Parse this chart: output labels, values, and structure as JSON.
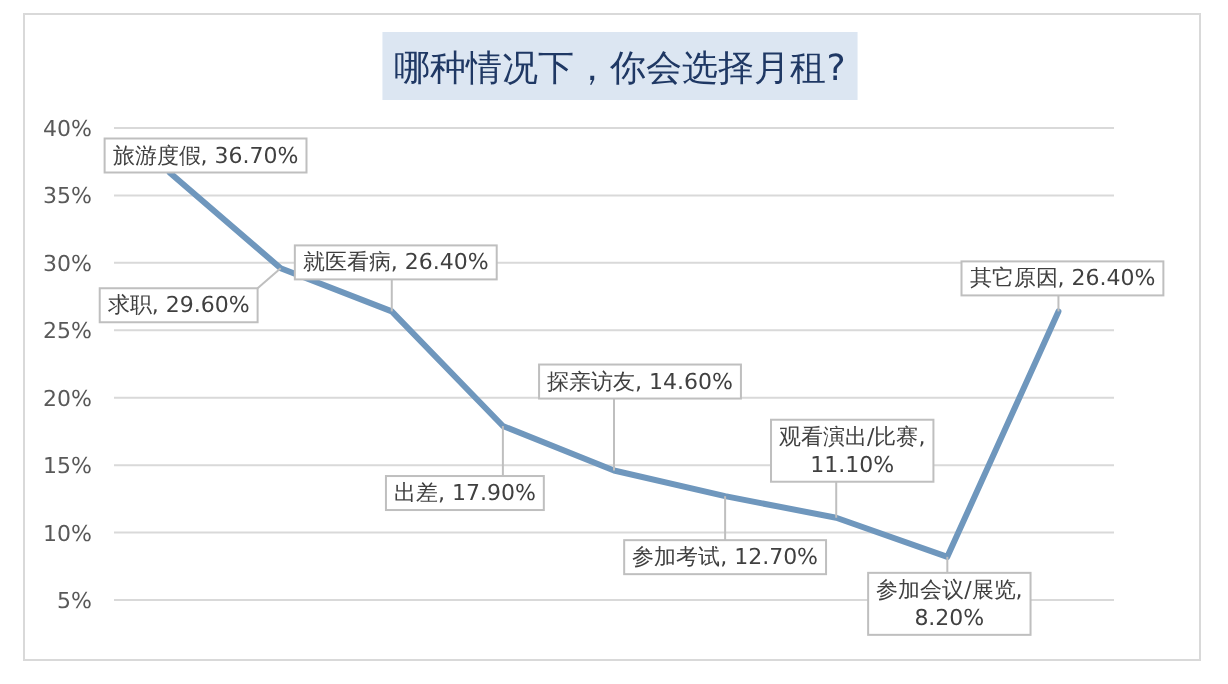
{
  "chart_data": {
    "type": "line",
    "title": "哪种情况下，你会选择月租?",
    "categories": [
      null,
      null,
      null,
      null,
      null,
      null,
      null,
      null,
      null
    ],
    "values": [
      36.7,
      29.6,
      26.4,
      17.9,
      14.6,
      12.7,
      11.1,
      8.2,
      26.4
    ],
    "value_labels": [
      "旅游度假, 36.70%",
      "求职, 29.60%",
      "就医看病, 26.40%",
      "出差, 17.90%",
      "探亲访友, 14.60%",
      "参加考试, 12.70%",
      "观看演出/比赛, 11.10%",
      "参加会议/展览, 8.20%",
      "其它原因, 26.40%"
    ],
    "color": "#6f97bd",
    "ylim": [
      5,
      40
    ],
    "yticks": [
      {
        "value": 5,
        "label": "5%"
      },
      {
        "value": 10,
        "label": "10%"
      },
      {
        "value": 15,
        "label": "15%"
      },
      {
        "value": 20,
        "label": "20%"
      },
      {
        "value": 25,
        "label": "25%"
      },
      {
        "value": 30,
        "label": "30%"
      },
      {
        "value": 35,
        "label": "35%"
      },
      {
        "value": 40,
        "label": "40%"
      }
    ],
    "grid": "y",
    "marker": "none",
    "line_style": "solid"
  }
}
